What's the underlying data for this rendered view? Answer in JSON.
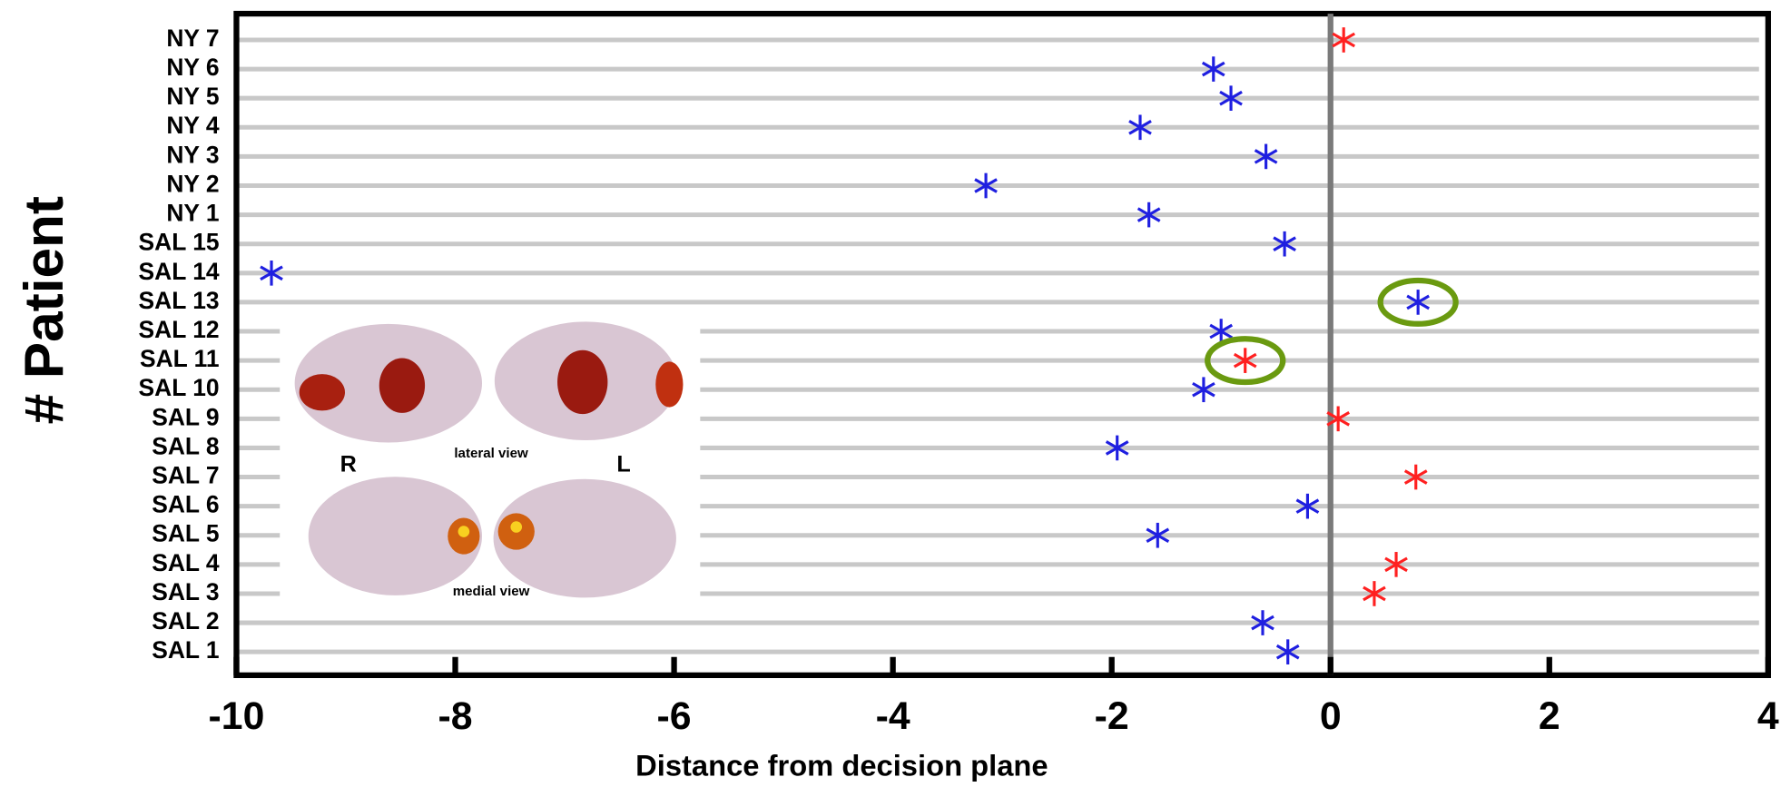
{
  "chart_data": {
    "type": "scatter",
    "x_label": "Distance from decision plane",
    "y_label": "# Patient",
    "categories": [
      "NY 7",
      "NY 6",
      "NY 5",
      "NY 4",
      "NY 3",
      "NY 2",
      "NY 1",
      "SAL 15",
      "SAL 14",
      "SAL 13",
      "SAL 12",
      "SAL 11",
      "SAL 10",
      "SAL 9",
      "SAL 8",
      "SAL 7",
      "SAL 6",
      "SAL 5",
      "SAL 4",
      "SAL 3",
      "SAL 2",
      "SAL 1"
    ],
    "values": [
      0.12,
      -1.07,
      -0.91,
      -1.74,
      -0.59,
      -3.15,
      -1.66,
      -0.42,
      -9.68,
      0.8,
      -1.0,
      -0.78,
      -1.16,
      0.07,
      -1.95,
      0.78,
      -0.21,
      -1.58,
      0.6,
      0.4,
      -0.62,
      -0.39
    ],
    "colors": [
      "#ff2020",
      "#1f1fe0",
      "#1f1fe0",
      "#1f1fe0",
      "#1f1fe0",
      "#1f1fe0",
      "#1f1fe0",
      "#1f1fe0",
      "#1f1fe0",
      "#1f1fe0",
      "#1f1fe0",
      "#ff2020",
      "#1f1fe0",
      "#ff2020",
      "#1f1fe0",
      "#ff2020",
      "#1f1fe0",
      "#1f1fe0",
      "#ff2020",
      "#ff2020",
      "#1f1fe0",
      "#1f1fe0"
    ],
    "highlighted": [
      9,
      11
    ],
    "highlight_color": "#6a9a10",
    "xlim": [
      -10,
      4
    ],
    "xticks": [
      -10,
      -8,
      -6,
      -4,
      -2,
      0,
      2,
      4
    ],
    "zero_line": true,
    "grid": true,
    "inset": {
      "left_label": "R",
      "right_label": "L",
      "top_caption": "lateral view",
      "bottom_caption": "medial view"
    }
  }
}
